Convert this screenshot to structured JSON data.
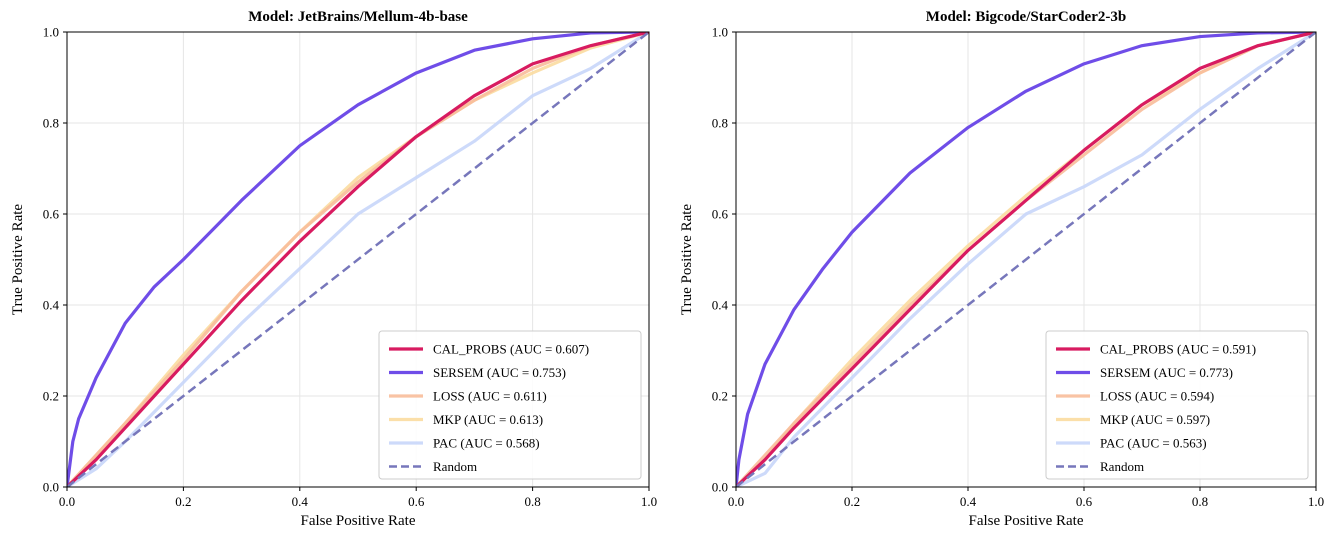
{
  "chart_data": [
    {
      "type": "line",
      "title": "Model: JetBrains/Mellum-4b-base",
      "xlabel": "False Positive Rate",
      "ylabel": "True Positive Rate",
      "xlim": [
        0,
        1
      ],
      "ylim": [
        0,
        1
      ],
      "xticks": [
        "0.0",
        "0.2",
        "0.4",
        "0.6",
        "0.8",
        "1.0"
      ],
      "yticks": [
        "0.0",
        "0.2",
        "0.4",
        "0.6",
        "0.8",
        "1.0"
      ],
      "grid": true,
      "legend_position": "lower-right",
      "series": [
        {
          "name": "CAL_PROBS (AUC = 0.607)",
          "color": "#d81b60",
          "alpha": 1.0,
          "dashed": false,
          "x": [
            0,
            0.05,
            0.1,
            0.2,
            0.3,
            0.4,
            0.5,
            0.6,
            0.7,
            0.8,
            0.9,
            1.0
          ],
          "y": [
            0,
            0.06,
            0.13,
            0.27,
            0.41,
            0.54,
            0.66,
            0.77,
            0.86,
            0.93,
            0.97,
            1.0
          ]
        },
        {
          "name": "SERSEM (AUC = 0.753)",
          "color": "#6f4de8",
          "alpha": 1.0,
          "dashed": false,
          "x": [
            0,
            0.01,
            0.02,
            0.05,
            0.1,
            0.15,
            0.2,
            0.3,
            0.4,
            0.5,
            0.6,
            0.7,
            0.8,
            0.9,
            1.0
          ],
          "y": [
            0,
            0.1,
            0.15,
            0.24,
            0.36,
            0.44,
            0.5,
            0.63,
            0.75,
            0.84,
            0.91,
            0.96,
            0.985,
            0.998,
            1.0
          ]
        },
        {
          "name": "LOSS (AUC = 0.611)",
          "color": "#f8bd9a",
          "alpha": 0.9,
          "dashed": false,
          "x": [
            0,
            0.05,
            0.1,
            0.2,
            0.3,
            0.4,
            0.5,
            0.6,
            0.7,
            0.8,
            0.9,
            1.0
          ],
          "y": [
            0,
            0.07,
            0.14,
            0.28,
            0.43,
            0.56,
            0.67,
            0.77,
            0.85,
            0.92,
            0.97,
            1.0
          ]
        },
        {
          "name": "MKP (AUC = 0.613)",
          "color": "#fbdba0",
          "alpha": 0.9,
          "dashed": false,
          "x": [
            0,
            0.05,
            0.1,
            0.2,
            0.3,
            0.4,
            0.5,
            0.6,
            0.7,
            0.8,
            0.9,
            1.0
          ],
          "y": [
            0,
            0.07,
            0.14,
            0.29,
            0.43,
            0.56,
            0.68,
            0.77,
            0.85,
            0.91,
            0.965,
            1.0
          ]
        },
        {
          "name": "PAC (AUC = 0.568)",
          "color": "#c8d6fa",
          "alpha": 0.9,
          "dashed": false,
          "x": [
            0,
            0.05,
            0.1,
            0.2,
            0.3,
            0.4,
            0.5,
            0.6,
            0.7,
            0.8,
            0.9,
            1.0
          ],
          "y": [
            0,
            0.04,
            0.1,
            0.23,
            0.36,
            0.48,
            0.6,
            0.68,
            0.76,
            0.86,
            0.92,
            1.0
          ]
        },
        {
          "name": "Random",
          "color": "#7777bb",
          "alpha": 1.0,
          "dashed": true,
          "x": [
            0,
            1
          ],
          "y": [
            0,
            1
          ]
        }
      ]
    },
    {
      "type": "line",
      "title": "Model: Bigcode/StarCoder2-3b",
      "xlabel": "False Positive Rate",
      "ylabel": "True Positive Rate",
      "xlim": [
        0,
        1
      ],
      "ylim": [
        0,
        1
      ],
      "xticks": [
        "0.0",
        "0.2",
        "0.4",
        "0.6",
        "0.8",
        "1.0"
      ],
      "yticks": [
        "0.0",
        "0.2",
        "0.4",
        "0.6",
        "0.8",
        "1.0"
      ],
      "grid": true,
      "legend_position": "lower-right",
      "series": [
        {
          "name": "CAL_PROBS (AUC = 0.591)",
          "color": "#d81b60",
          "alpha": 1.0,
          "dashed": false,
          "x": [
            0,
            0.05,
            0.1,
            0.2,
            0.3,
            0.4,
            0.5,
            0.6,
            0.7,
            0.8,
            0.9,
            1.0
          ],
          "y": [
            0,
            0.06,
            0.13,
            0.26,
            0.39,
            0.52,
            0.63,
            0.74,
            0.84,
            0.92,
            0.97,
            1.0
          ]
        },
        {
          "name": "SERSEM (AUC = 0.773)",
          "color": "#6f4de8",
          "alpha": 1.0,
          "dashed": false,
          "x": [
            0,
            0.005,
            0.02,
            0.05,
            0.1,
            0.15,
            0.2,
            0.3,
            0.4,
            0.5,
            0.6,
            0.7,
            0.8,
            0.9,
            1.0
          ],
          "y": [
            0,
            0.06,
            0.16,
            0.27,
            0.39,
            0.48,
            0.56,
            0.69,
            0.79,
            0.87,
            0.93,
            0.97,
            0.99,
            0.998,
            1.0
          ]
        },
        {
          "name": "LOSS (AUC = 0.594)",
          "color": "#f8bd9a",
          "alpha": 0.9,
          "dashed": false,
          "x": [
            0,
            0.05,
            0.1,
            0.2,
            0.3,
            0.4,
            0.5,
            0.6,
            0.7,
            0.8,
            0.9,
            1.0
          ],
          "y": [
            0,
            0.07,
            0.14,
            0.27,
            0.4,
            0.52,
            0.63,
            0.73,
            0.83,
            0.91,
            0.97,
            1.0
          ]
        },
        {
          "name": "MKP (AUC = 0.597)",
          "color": "#fbdba0",
          "alpha": 0.9,
          "dashed": false,
          "x": [
            0,
            0.05,
            0.1,
            0.2,
            0.3,
            0.4,
            0.5,
            0.6,
            0.7,
            0.8,
            0.9,
            1.0
          ],
          "y": [
            0,
            0.06,
            0.14,
            0.28,
            0.41,
            0.53,
            0.64,
            0.74,
            0.84,
            0.91,
            0.97,
            1.0
          ]
        },
        {
          "name": "PAC (AUC = 0.563)",
          "color": "#c8d6fa",
          "alpha": 0.9,
          "dashed": false,
          "x": [
            0,
            0.05,
            0.1,
            0.2,
            0.3,
            0.4,
            0.5,
            0.6,
            0.7,
            0.8,
            0.9,
            1.0
          ],
          "y": [
            0,
            0.03,
            0.11,
            0.24,
            0.37,
            0.49,
            0.6,
            0.66,
            0.73,
            0.83,
            0.92,
            1.0
          ]
        },
        {
          "name": "Random",
          "color": "#7777bb",
          "alpha": 1.0,
          "dashed": true,
          "x": [
            0,
            1
          ],
          "y": [
            0,
            1
          ]
        }
      ]
    }
  ]
}
